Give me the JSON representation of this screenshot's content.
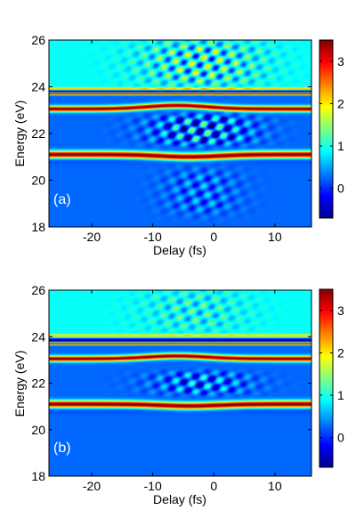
{
  "chart_data": [
    {
      "type": "heatmap",
      "panel_label": "(a)",
      "xlabel": "Delay (fs)",
      "ylabel": "Energy (eV)",
      "xlim": [
        -27,
        16
      ],
      "ylim": [
        18,
        26
      ],
      "xticks": [
        -20,
        -10,
        0,
        10
      ],
      "yticks": [
        18,
        20,
        22,
        24,
        26
      ],
      "colorbar": {
        "ticks": [
          0,
          1,
          2,
          3
        ],
        "range": [
          -0.7,
          3.5
        ],
        "colormap": "jet"
      },
      "background_level": {
        "above_23.9_eV": 0.9,
        "below_23.9_eV": 0.25
      },
      "bands": [
        {
          "energy": 23.9,
          "level": 2.4,
          "width": 0.06
        },
        {
          "energy": 23.8,
          "level": -0.6,
          "width": 0.05
        },
        {
          "energy": 23.7,
          "level": 3.4,
          "width": 0.05
        },
        {
          "energy": 23.05,
          "level": 3.5,
          "width": 0.12,
          "bend_center": -6,
          "bend_amount": 0.15
        },
        {
          "energy": 21.1,
          "level": 3.5,
          "width": 0.15,
          "bend_center": -4,
          "bend_amount": -0.1
        }
      ],
      "fringes": [
        {
          "energy_range": [
            24.0,
            26.0
          ],
          "delay_range": [
            -12,
            8
          ],
          "amplitude": 1.2
        },
        {
          "energy_range": [
            21.5,
            22.8
          ],
          "delay_range": [
            -10,
            6
          ],
          "amplitude": 1.5
        },
        {
          "energy_range": [
            18.5,
            20.5
          ],
          "delay_range": [
            -8,
            4
          ],
          "amplitude": 0.6
        }
      ]
    },
    {
      "type": "heatmap",
      "panel_label": "(b)",
      "xlabel": "Delay (fs)",
      "ylabel": "Energy (eV)",
      "xlim": [
        -27,
        16
      ],
      "ylim": [
        18,
        26
      ],
      "xticks": [
        -20,
        -10,
        0,
        10
      ],
      "yticks": [
        18,
        20,
        22,
        24,
        26
      ],
      "colorbar": {
        "ticks": [
          0,
          1,
          2,
          3
        ],
        "range": [
          -0.7,
          3.5
        ],
        "colormap": "jet"
      },
      "background_level": {
        "above_23.9_eV": 0.9,
        "below_23.9_eV": 0.25
      },
      "bands": [
        {
          "energy": 24.05,
          "level": 2.2,
          "width": 0.06
        },
        {
          "energy": 23.85,
          "level": -0.6,
          "width": 0.05
        },
        {
          "energy": 23.7,
          "level": 3.4,
          "width": 0.05
        },
        {
          "energy": 23.05,
          "level": 3.5,
          "width": 0.12,
          "bend_center": -6,
          "bend_amount": 0.12
        },
        {
          "energy": 21.1,
          "level": 3.5,
          "width": 0.15,
          "bend_center": -4,
          "bend_amount": -0.08
        }
      ],
      "fringes": [
        {
          "energy_range": [
            24.2,
            26.0
          ],
          "delay_range": [
            -12,
            6
          ],
          "amplitude": 0.6
        },
        {
          "energy_range": [
            21.5,
            22.5
          ],
          "delay_range": [
            -10,
            6
          ],
          "amplitude": 1.0
        }
      ]
    }
  ]
}
